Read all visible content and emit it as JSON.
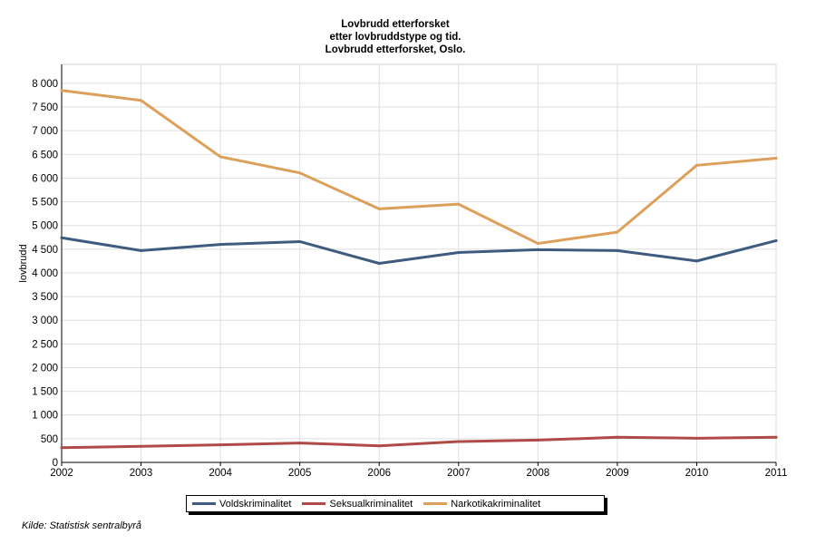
{
  "chart_data": {
    "type": "line",
    "title": [
      "Lovbrudd etterforsket",
      "etter lovbruddstype og tid.",
      "Lovbrudd etterforsket, Oslo."
    ],
    "ylabel": "lovbrudd",
    "xlabel": "",
    "x": [
      "2002",
      "2003",
      "2004",
      "2005",
      "2006",
      "2007",
      "2008",
      "2009",
      "2010",
      "2011"
    ],
    "ylim": [
      0,
      8400
    ],
    "yticks": [
      0,
      500,
      1000,
      1500,
      2000,
      2500,
      3000,
      3500,
      4000,
      4500,
      5000,
      5500,
      6000,
      6500,
      7000,
      7500,
      8000
    ],
    "ytick_labels": [
      "0",
      "500",
      "1 000",
      "1 500",
      "2 000",
      "2 500",
      "3 000",
      "3 500",
      "4 000",
      "4 500",
      "5 000",
      "5 500",
      "6 000",
      "6 500",
      "7 000",
      "7 500",
      "8 000"
    ],
    "grid": true,
    "legend_position": "bottom",
    "series": [
      {
        "name": "Voldskriminalitet",
        "color": "#3f5b7f",
        "values": [
          4740,
          4470,
          4600,
          4660,
          4200,
          4430,
          4490,
          4470,
          4250,
          4680
        ]
      },
      {
        "name": "Seksualkriminalitet",
        "color": "#b04a48",
        "values": [
          310,
          340,
          370,
          410,
          350,
          440,
          470,
          530,
          510,
          530
        ]
      },
      {
        "name": "Narkotikakriminalitet",
        "color": "#dca05a",
        "values": [
          7850,
          7640,
          6450,
          6110,
          5350,
          5450,
          4620,
          4860,
          6270,
          6420
        ]
      }
    ]
  },
  "source_text": "Kilde: Statistisk sentralbyrå"
}
